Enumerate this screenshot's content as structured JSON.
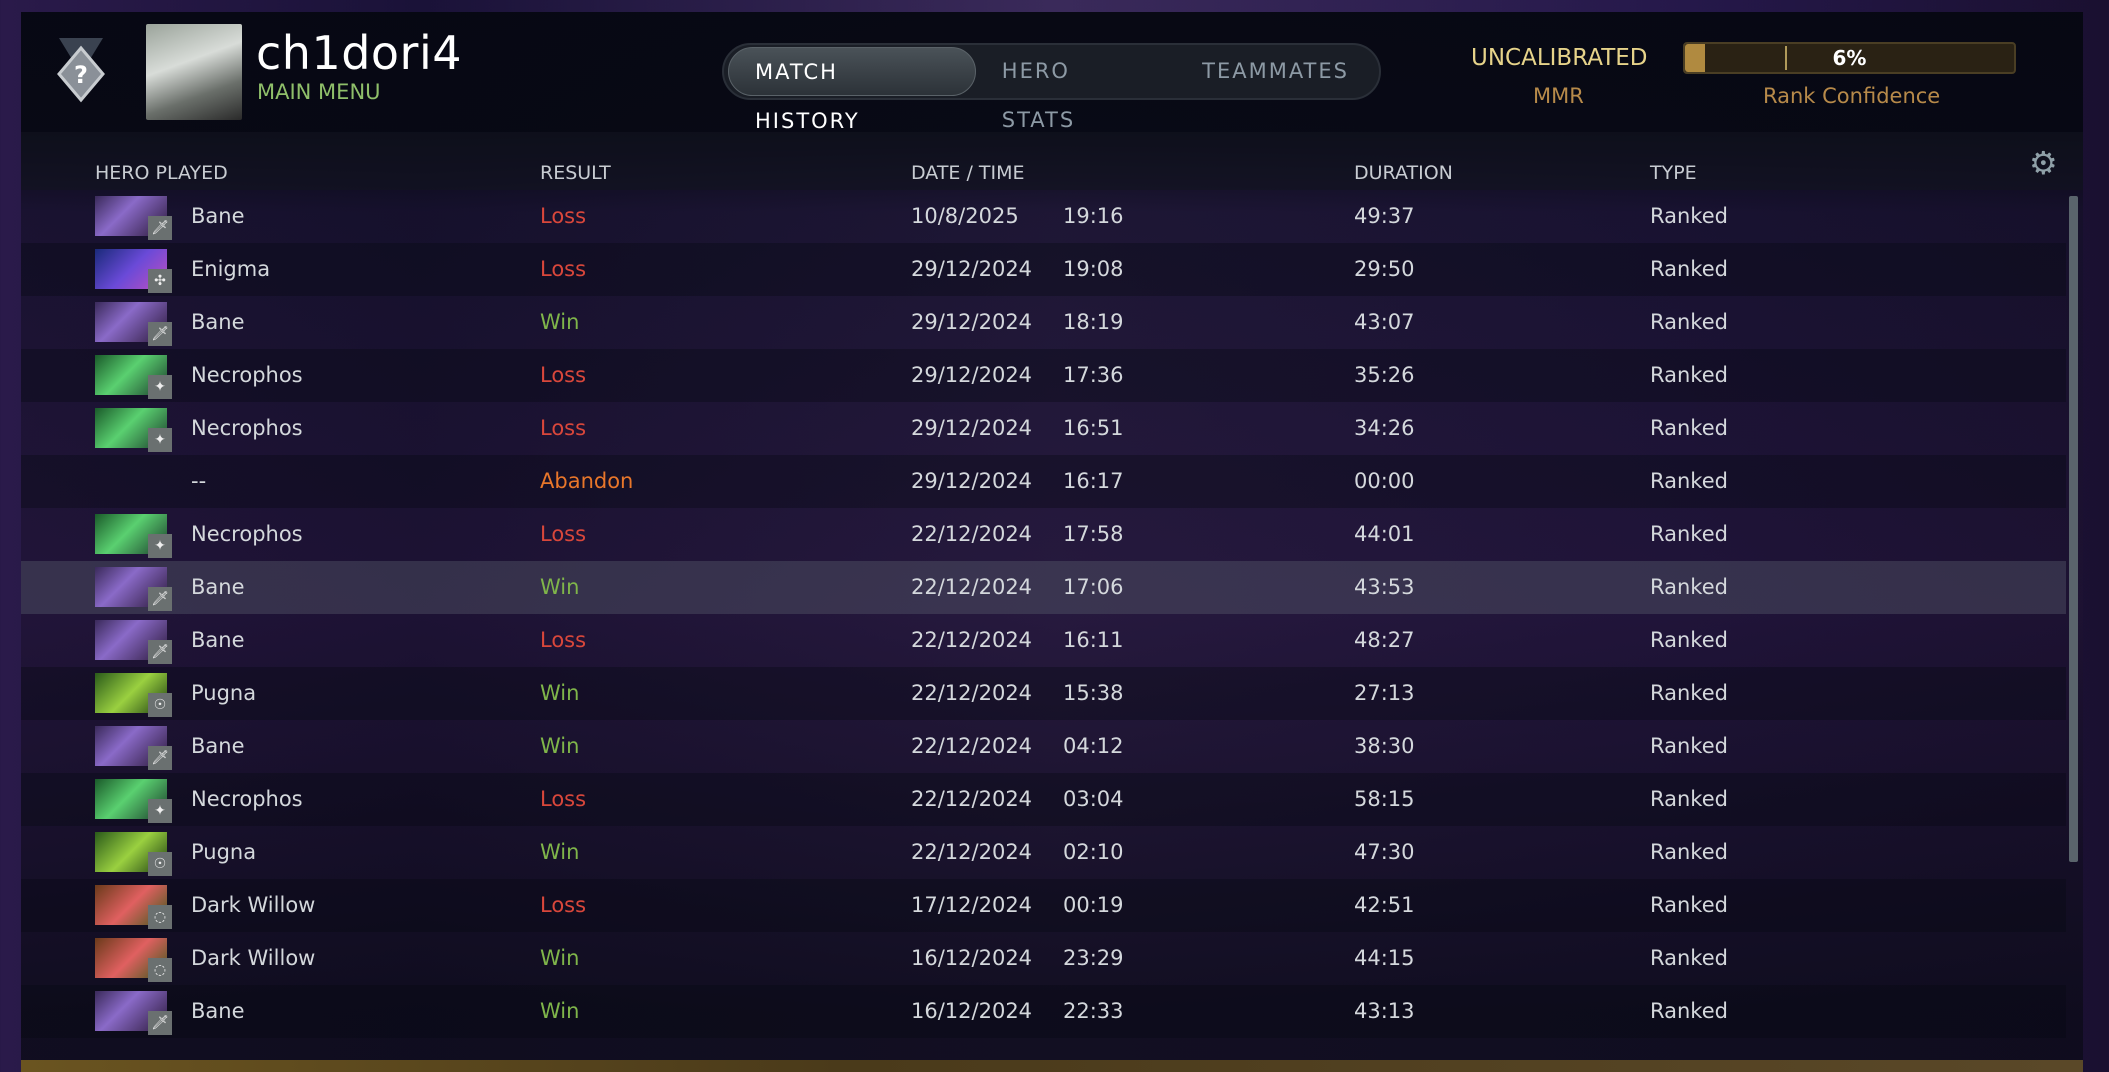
{
  "header": {
    "username": "ch1dori4",
    "subtitle": "MAIN MENU",
    "rank_icon": "uncalibrated-rank-medal",
    "tabs": [
      {
        "label": "MATCH HISTORY",
        "active": true
      },
      {
        "label": "HERO STATS",
        "active": false
      },
      {
        "label": "TEAMMATES",
        "active": false
      }
    ],
    "mmr_value": "UNCALIBRATED",
    "mmr_label": "MMR",
    "rank_confidence_pct": "6%",
    "rank_confidence_value": 6,
    "rank_confidence_label": "Rank Confidence"
  },
  "columns": [
    "HERO PLAYED",
    "RESULT",
    "DATE / TIME",
    "DURATION",
    "TYPE"
  ],
  "settings_icon": "gear-icon",
  "colors": {
    "win": "#7fb54a",
    "loss": "#d9473b",
    "abandon": "#e8762a",
    "accent_gold": "#b08a40"
  },
  "matches": [
    {
      "hero": "Bane",
      "result": "Loss",
      "date": "10/8/2025",
      "time": "19:16",
      "duration": "49:37",
      "type": "Ranked"
    },
    {
      "hero": "Enigma",
      "result": "Loss",
      "date": "29/12/2024",
      "time": "19:08",
      "duration": "29:50",
      "type": "Ranked"
    },
    {
      "hero": "Bane",
      "result": "Win",
      "date": "29/12/2024",
      "time": "18:19",
      "duration": "43:07",
      "type": "Ranked"
    },
    {
      "hero": "Necrophos",
      "result": "Loss",
      "date": "29/12/2024",
      "time": "17:36",
      "duration": "35:26",
      "type": "Ranked"
    },
    {
      "hero": "Necrophos",
      "result": "Loss",
      "date": "29/12/2024",
      "time": "16:51",
      "duration": "34:26",
      "type": "Ranked"
    },
    {
      "hero": "--",
      "result": "Abandon",
      "date": "29/12/2024",
      "time": "16:17",
      "duration": "00:00",
      "type": "Ranked"
    },
    {
      "hero": "Necrophos",
      "result": "Loss",
      "date": "22/12/2024",
      "time": "17:58",
      "duration": "44:01",
      "type": "Ranked"
    },
    {
      "hero": "Bane",
      "result": "Win",
      "date": "22/12/2024",
      "time": "17:06",
      "duration": "43:53",
      "type": "Ranked"
    },
    {
      "hero": "Bane",
      "result": "Loss",
      "date": "22/12/2024",
      "time": "16:11",
      "duration": "48:27",
      "type": "Ranked"
    },
    {
      "hero": "Pugna",
      "result": "Win",
      "date": "22/12/2024",
      "time": "15:38",
      "duration": "27:13",
      "type": "Ranked"
    },
    {
      "hero": "Bane",
      "result": "Win",
      "date": "22/12/2024",
      "time": "04:12",
      "duration": "38:30",
      "type": "Ranked"
    },
    {
      "hero": "Necrophos",
      "result": "Loss",
      "date": "22/12/2024",
      "time": "03:04",
      "duration": "58:15",
      "type": "Ranked"
    },
    {
      "hero": "Pugna",
      "result": "Win",
      "date": "22/12/2024",
      "time": "02:10",
      "duration": "47:30",
      "type": "Ranked"
    },
    {
      "hero": "Dark Willow",
      "result": "Loss",
      "date": "17/12/2024",
      "time": "00:19",
      "duration": "42:51",
      "type": "Ranked"
    },
    {
      "hero": "Dark Willow",
      "result": "Win",
      "date": "16/12/2024",
      "time": "23:29",
      "duration": "44:15",
      "type": "Ranked"
    },
    {
      "hero": "Bane",
      "result": "Win",
      "date": "16/12/2024",
      "time": "22:33",
      "duration": "43:13",
      "type": "Ranked"
    }
  ]
}
